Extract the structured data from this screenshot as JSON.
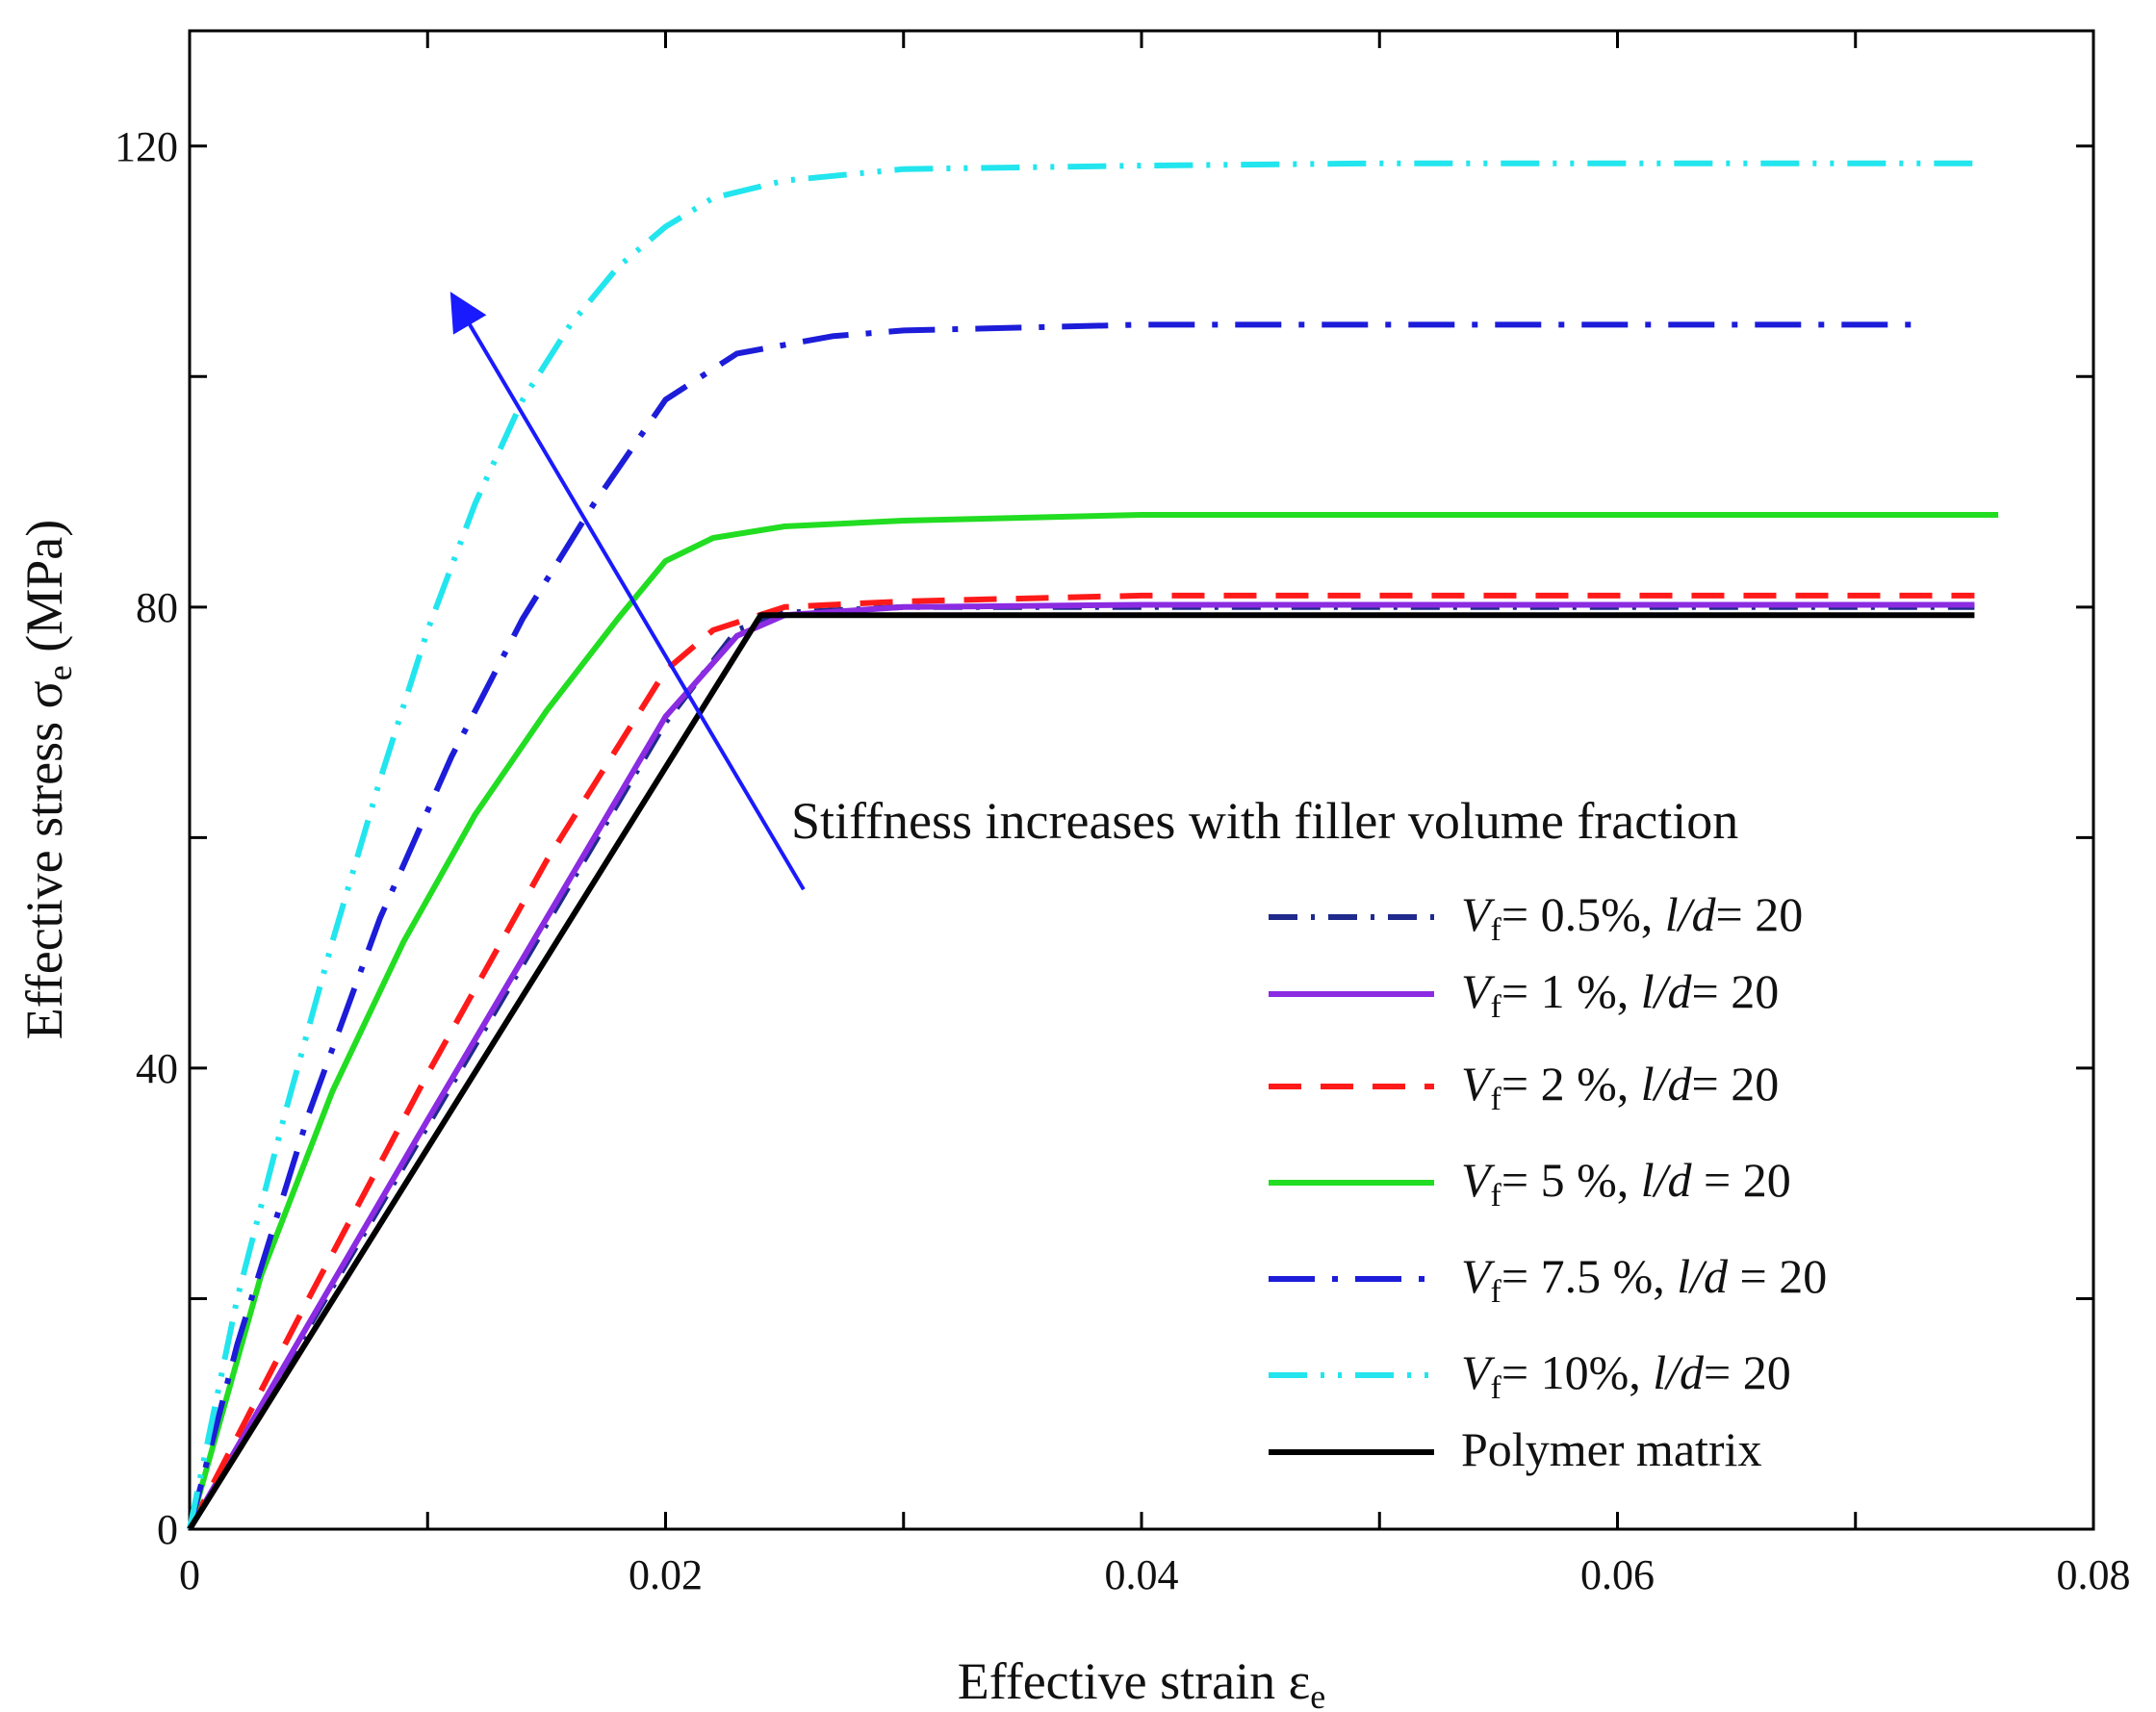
{
  "chart_data": {
    "type": "line",
    "xlabel": "Effective strain ε",
    "xlabel_sub": "e",
    "ylabel": "Effective stress σ",
    "ylabel_sub": "e",
    "ylabel_unit": " (MPa)",
    "xlim": [
      0,
      0.08
    ],
    "ylim": [
      0,
      130
    ],
    "xticks": [
      0,
      0.02,
      0.04,
      0.06,
      0.08
    ],
    "xtick_labels": [
      "0",
      "0.02",
      "0.04",
      "0.06",
      "0.08"
    ],
    "yticks": [
      0,
      40,
      80,
      120
    ],
    "ytick_labels": [
      "0",
      "40",
      "80",
      "120"
    ],
    "minor_yticks": [
      20,
      60,
      100
    ],
    "grid": false,
    "legend_position": "lower-right",
    "annotation": {
      "text": "Stiffness increases with filler volume fraction",
      "arrow_from": [
        0.0258,
        55.5
      ],
      "arrow_to": [
        0.0112,
        106.5
      ],
      "color": "#1a1aff"
    },
    "series": [
      {
        "name": "V_f= 0.5%, l/d= 20",
        "legend_parts": [
          "V",
          "f",
          "= 0.5%, ",
          "l/d",
          "= 20"
        ],
        "color": "#1f2a8c",
        "dash": "dashdot",
        "x": [
          0,
          0.005,
          0.01,
          0.015,
          0.02,
          0.023,
          0.025,
          0.03,
          0.04,
          0.05,
          0.06,
          0.075
        ],
        "y": [
          0,
          17.5,
          35,
          52.5,
          70,
          78,
          79.5,
          80,
          80,
          80,
          80,
          80
        ]
      },
      {
        "name": "V_f= 1 %, l/d= 20",
        "legend_parts": [
          "V",
          "f",
          "= 1 %, ",
          "l/d",
          "= 20"
        ],
        "color": "#8b2be2",
        "dash": "solid",
        "x": [
          0,
          0.005,
          0.01,
          0.015,
          0.02,
          0.023,
          0.025,
          0.03,
          0.04,
          0.05,
          0.06,
          0.075
        ],
        "y": [
          0,
          17.8,
          35.5,
          53,
          70.5,
          77.5,
          79.3,
          80,
          80.2,
          80.2,
          80.2,
          80.2
        ]
      },
      {
        "name": "V_f= 2 %, l/d= 20",
        "legend_parts": [
          "V",
          "f",
          "= 2 %, ",
          "l/d",
          "= 20"
        ],
        "color": "#ff1a1a",
        "dash": "dash",
        "x": [
          0,
          0.005,
          0.01,
          0.015,
          0.02,
          0.022,
          0.025,
          0.03,
          0.04,
          0.05,
          0.06,
          0.075
        ],
        "y": [
          0,
          20,
          39.5,
          58,
          74.5,
          78,
          80,
          80.5,
          81,
          81,
          81,
          81
        ]
      },
      {
        "name": "V_f= 5 %, l/d = 20",
        "legend_parts": [
          "V",
          "f",
          "= 5 %, ",
          "l/d",
          " = 20"
        ],
        "color": "#22dd22",
        "dash": "solid",
        "x": [
          0,
          0.003,
          0.006,
          0.009,
          0.012,
          0.015,
          0.018,
          0.02,
          0.022,
          0.025,
          0.03,
          0.04,
          0.05,
          0.06,
          0.076
        ],
        "y": [
          0,
          22,
          38,
          51,
          62,
          71,
          79,
          84,
          86,
          87,
          87.5,
          88,
          88,
          88,
          88
        ]
      },
      {
        "name": "V_f= 7.5 %, l/d = 20",
        "legend_parts": [
          "V",
          "f",
          "= 7.5 %, ",
          "l/d",
          " = 20"
        ],
        "color": "#1c1cd9",
        "dash": "longdashdot",
        "x": [
          0,
          0.002,
          0.005,
          0.008,
          0.011,
          0.014,
          0.017,
          0.02,
          0.023,
          0.027,
          0.03,
          0.04,
          0.05,
          0.06,
          0.073
        ],
        "y": [
          0,
          16,
          36,
          53,
          67,
          79,
          89,
          98,
          102,
          103.5,
          104,
          104.5,
          104.5,
          104.5,
          104.5
        ]
      },
      {
        "name": "V_f= 10%, l/d= 20",
        "legend_parts": [
          "V",
          "f",
          "= 10%, ",
          "l/d",
          "= 20"
        ],
        "color": "#22e5ee",
        "dash": "dashdotdot",
        "x": [
          0,
          0.002,
          0.004,
          0.006,
          0.008,
          0.01,
          0.012,
          0.014,
          0.016,
          0.018,
          0.02,
          0.022,
          0.025,
          0.03,
          0.04,
          0.05,
          0.06,
          0.075
        ],
        "y": [
          0,
          20,
          36,
          51,
          65,
          78,
          89,
          98,
          104.5,
          109.5,
          113,
          115.5,
          117,
          118,
          118.3,
          118.5,
          118.5,
          118.5
        ]
      },
      {
        "name": "Polymer matrix",
        "legend_parts": [
          "",
          "",
          "Polymer matrix",
          "",
          ""
        ],
        "color": "#000000",
        "dash": "solid",
        "x": [
          0,
          0.024,
          0.03,
          0.04,
          0.05,
          0.06,
          0.075
        ],
        "y": [
          0,
          79.3,
          79.3,
          79.3,
          79.3,
          79.3,
          79.3
        ]
      }
    ]
  }
}
